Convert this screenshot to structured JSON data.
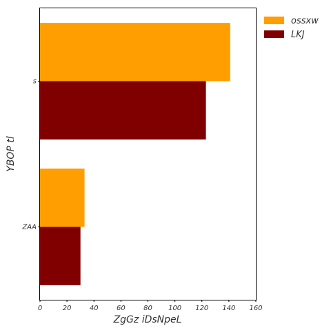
{
  "chart_data": {
    "type": "bar",
    "orientation": "horizontal",
    "categories": [
      "s",
      "ZAA"
    ],
    "series": [
      {
        "name": "ossxw",
        "color": "#ff9e00",
        "values": [
          141,
          33
        ]
      },
      {
        "name": "LKJ",
        "color": "#800000",
        "values": [
          123,
          30
        ]
      }
    ],
    "xlabel": "ZgGz  iDsNpeL",
    "ylabel": "YBOP  tl",
    "xlim": [
      0,
      160
    ],
    "xticks": [
      "0",
      "20",
      "40",
      "60",
      "80",
      "100",
      "120",
      "140",
      "160"
    ],
    "grid": false,
    "legend_position": "outside-top-right"
  }
}
